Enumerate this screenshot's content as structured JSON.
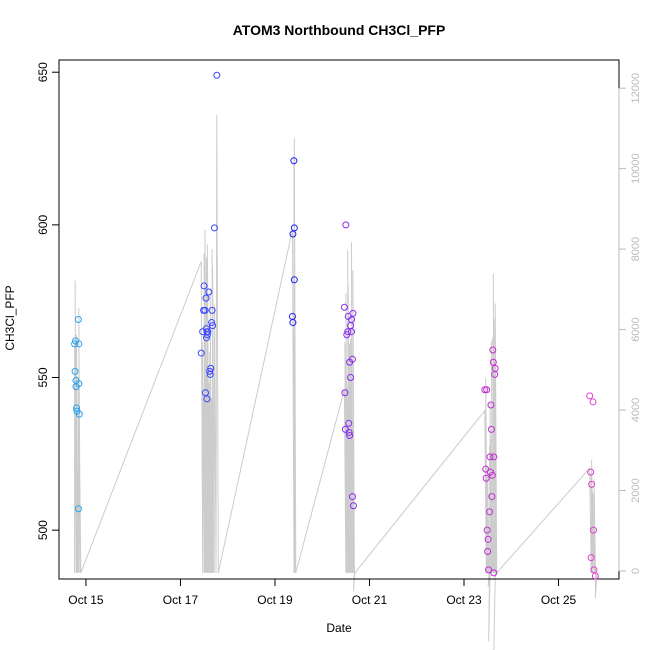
{
  "chart_data": {
    "type": "scatter",
    "title": "ATOM3 Northbound CH3Cl_PFP",
    "xlabel": "Date",
    "ylabel": "CH3Cl_PFP",
    "x_axis": {
      "unit": "days",
      "ticks": [
        {
          "value": 15,
          "label": "Oct 15"
        },
        {
          "value": 17,
          "label": "Oct 17"
        },
        {
          "value": 19,
          "label": "Oct 19"
        },
        {
          "value": 21,
          "label": "Oct 21"
        },
        {
          "value": 23,
          "label": "Oct 23"
        },
        {
          "value": 25,
          "label": "Oct 25"
        }
      ],
      "range": [
        14.43,
        26.28
      ]
    },
    "y_left": {
      "range": [
        484,
        654
      ],
      "ticks": [
        500,
        550,
        600,
        650
      ]
    },
    "y_right": {
      "range": [
        -200,
        12700
      ],
      "ticks": [
        0,
        2000,
        4000,
        6000,
        8000,
        10000,
        12000
      ],
      "color": "#bbbbbb"
    },
    "grid": false,
    "legend": "none",
    "series": [
      {
        "color": "#29a3ee",
        "points": [
          [
            14.76,
            561
          ],
          [
            14.78,
            562
          ],
          [
            14.77,
            552
          ],
          [
            14.79,
            549
          ],
          [
            14.79,
            547
          ],
          [
            14.8,
            540
          ],
          [
            14.81,
            539
          ],
          [
            14.84,
            569
          ],
          [
            14.85,
            561
          ],
          [
            14.85,
            548
          ],
          [
            14.86,
            538
          ],
          [
            14.84,
            507
          ]
        ]
      },
      {
        "color": "#3a46ff",
        "points": [
          [
            17.44,
            558
          ],
          [
            17.47,
            565
          ],
          [
            17.49,
            572
          ],
          [
            17.5,
            580
          ],
          [
            17.52,
            572
          ],
          [
            17.54,
            576
          ],
          [
            17.55,
            566
          ],
          [
            17.55,
            563
          ],
          [
            17.56,
            565
          ],
          [
            17.57,
            564
          ],
          [
            17.58,
            565
          ],
          [
            17.6,
            578
          ],
          [
            17.62,
            552
          ],
          [
            17.63,
            551
          ],
          [
            17.64,
            553
          ],
          [
            17.66,
            568
          ],
          [
            17.67,
            572
          ],
          [
            17.68,
            567
          ],
          [
            17.72,
            599
          ],
          [
            17.77,
            649
          ],
          [
            17.53,
            545
          ],
          [
            17.56,
            543
          ]
        ]
      },
      {
        "color": "#2020ee",
        "points": [
          [
            19.37,
            570
          ],
          [
            19.38,
            568
          ],
          [
            19.38,
            597
          ],
          [
            19.4,
            621
          ],
          [
            19.41,
            599
          ],
          [
            19.41,
            582
          ]
        ]
      },
      {
        "color": "#8a2cf0",
        "points": [
          [
            20.47,
            573
          ],
          [
            20.48,
            545
          ],
          [
            20.49,
            533
          ],
          [
            20.5,
            600
          ],
          [
            20.52,
            564
          ],
          [
            20.54,
            565
          ],
          [
            20.55,
            570
          ],
          [
            20.56,
            535
          ],
          [
            20.57,
            532
          ],
          [
            20.58,
            531
          ],
          [
            20.58,
            555
          ],
          [
            20.6,
            567
          ],
          [
            20.62,
            569
          ],
          [
            20.62,
            565
          ],
          [
            20.64,
            556
          ],
          [
            20.65,
            571
          ],
          [
            20.6,
            550
          ],
          [
            20.64,
            511
          ],
          [
            20.66,
            508
          ]
        ]
      },
      {
        "color": "#c62cd6",
        "points": [
          [
            23.44,
            546
          ],
          [
            23.46,
            520
          ],
          [
            23.47,
            517
          ],
          [
            23.48,
            546
          ],
          [
            23.49,
            500
          ],
          [
            23.5,
            493
          ],
          [
            23.51,
            497
          ],
          [
            23.52,
            487
          ],
          [
            23.54,
            506
          ],
          [
            23.55,
            524
          ],
          [
            23.56,
            519
          ],
          [
            23.57,
            541
          ],
          [
            23.58,
            533
          ],
          [
            23.59,
            511
          ],
          [
            23.6,
            518
          ],
          [
            23.61,
            559
          ],
          [
            23.62,
            555
          ],
          [
            23.63,
            524
          ],
          [
            23.65,
            551
          ],
          [
            23.66,
            553
          ],
          [
            23.63,
            486
          ]
        ]
      },
      {
        "color": "#e040d0",
        "points": [
          [
            25.66,
            544
          ],
          [
            25.68,
            519
          ],
          [
            25.7,
            515
          ],
          [
            25.69,
            491
          ],
          [
            25.73,
            542
          ],
          [
            25.74,
            500
          ],
          [
            25.75,
            487
          ],
          [
            25.78,
            485
          ]
        ]
      }
    ],
    "right_axis_series": {
      "color": "#cccccc",
      "note_line": "gray line series on right axis"
    }
  }
}
